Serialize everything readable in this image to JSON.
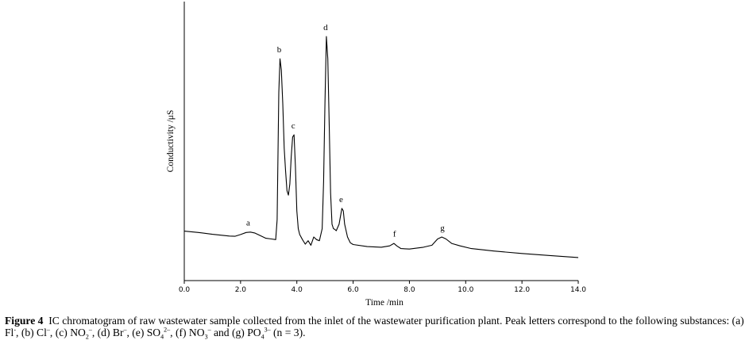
{
  "chart_data": {
    "type": "line",
    "title": "",
    "xlabel": "Time /min",
    "ylabel": "Conductivity /μS",
    "xlim": [
      0,
      14
    ],
    "ylim": [
      0,
      100
    ],
    "xticks": [
      "0.0",
      "2.0",
      "4.0",
      "6.0",
      "8.0",
      "10.0",
      "12.0",
      "14.0"
    ],
    "grid": false,
    "legend": "none",
    "line_color": "#000000",
    "series": [
      {
        "x": [
          0.0,
          0.5,
          1.0,
          1.3,
          1.6,
          1.8,
          2.0,
          2.2,
          2.35,
          2.5,
          2.7,
          2.9,
          3.1,
          3.25,
          3.3,
          3.36,
          3.4,
          3.45,
          3.5,
          3.55,
          3.6,
          3.65,
          3.7,
          3.75,
          3.8,
          3.85,
          3.9,
          3.95,
          4.0,
          4.05,
          4.1,
          4.2,
          4.3,
          4.4,
          4.5,
          4.6,
          4.7,
          4.8,
          4.9,
          4.95,
          5.0,
          5.05,
          5.1,
          5.15,
          5.2,
          5.25,
          5.3,
          5.35,
          5.4,
          5.5,
          5.6,
          5.65,
          5.7,
          5.8,
          5.9,
          6.0,
          6.5,
          7.0,
          7.3,
          7.45,
          7.55,
          7.7,
          8.0,
          8.5,
          8.8,
          9.0,
          9.15,
          9.3,
          9.5,
          9.8,
          10.2,
          11.0,
          12.0,
          13.0,
          14.0
        ],
        "values": [
          12.9,
          12.3,
          11.5,
          11.1,
          10.7,
          10.6,
          11.4,
          12.3,
          12.5,
          12.1,
          10.9,
          9.7,
          9.4,
          9.1,
          18,
          75,
          90,
          85,
          70,
          50,
          40,
          31,
          29,
          34,
          46,
          55,
          56,
          42,
          22,
          14,
          11.4,
          9.1,
          7.1,
          8.6,
          6.6,
          10.3,
          9.1,
          8.6,
          14,
          35,
          70,
          100,
          90,
          60,
          30,
          16,
          14,
          13.7,
          13.1,
          16,
          23.1,
          22,
          16,
          10.3,
          7.7,
          6.9,
          6.0,
          5.7,
          6.3,
          7.4,
          6.3,
          5.1,
          4.9,
          5.7,
          6.6,
          9.4,
          10.3,
          9.4,
          7.4,
          6.3,
          5.1,
          4.0,
          2.9,
          2.0,
          1.1
        ]
      }
    ],
    "peaks": [
      {
        "label": "a",
        "x": 2.3,
        "y": 12.6
      },
      {
        "label": "b",
        "x": 3.4,
        "y": 90
      },
      {
        "label": "c",
        "x": 3.9,
        "y": 56
      },
      {
        "label": "d",
        "x": 5.05,
        "y": 100
      },
      {
        "label": "e",
        "x": 5.6,
        "y": 23.1
      },
      {
        "label": "f",
        "x": 7.5,
        "y": 7.7
      },
      {
        "label": "g",
        "x": 9.2,
        "y": 10.3
      }
    ]
  },
  "caption": {
    "figure_label": "Figure 4",
    "text_intro": "IC chromatogram of raw wastewater sample collected from the inlet of the wastewater purification plant. Peak letters correspond to the following substances: (a) Fl",
    "fl_sup": "-",
    "b": ", (b) Cl",
    "cl_sup": "–",
    "c": ", (c) NO",
    "no2_sub": "2",
    "no2_sup": "–",
    "d": ", (d) Br",
    "br_sup": "–",
    "e": ", (e) SO",
    "so4_sub": "4",
    "so4_sup": "2–",
    "f": ", (f) NO",
    "no3_sub": "3",
    "no3_sup": "–",
    "g": " and (g) PO",
    "po4_sub": "4",
    "po4_sup": "3–",
    "tail": " (n = 3)."
  }
}
